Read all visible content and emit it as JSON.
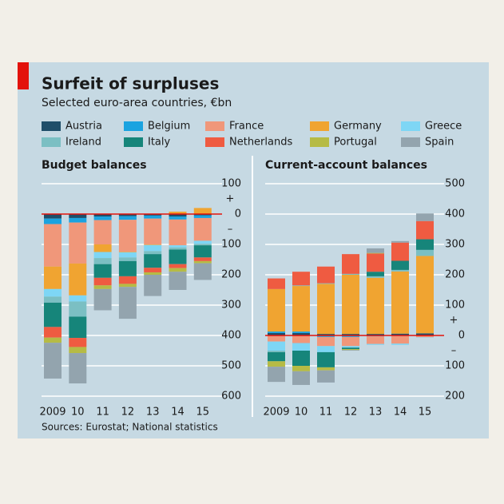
{
  "title": "Surfeit of surpluses",
  "subtitle": "Selected euro-area countries, €bn",
  "source": "Sources: Eurostat; National statistics",
  "chart_data": [
    {
      "type": "bar",
      "stacked": true,
      "title": "Budget balances",
      "categories": [
        "2009",
        "10",
        "11",
        "12",
        "13",
        "14",
        "15"
      ],
      "plus_label": "+",
      "minus_label": "–",
      "ylim": [
        -600,
        100
      ],
      "yticks": [
        100,
        0,
        {
          "value": -100,
          "label": "100"
        },
        {
          "value": -200,
          "label": "200"
        },
        {
          "value": -300,
          "label": "300"
        },
        {
          "value": -400,
          "label": "400"
        },
        {
          "value": -500,
          "label": "500"
        },
        {
          "value": -600,
          "label": "600"
        }
      ],
      "grid": true,
      "series": [
        {
          "name": "Austria",
          "color": "#1f4e69",
          "values": [
            -15,
            -13,
            -8,
            -7,
            -5,
            -8,
            -4
          ]
        },
        {
          "name": "Belgium",
          "color": "#1aa3e0",
          "values": [
            -18,
            -15,
            -12,
            -12,
            -10,
            -10,
            -9
          ]
        },
        {
          "name": "France",
          "color": "#f0977a",
          "values": [
            -140,
            -135,
            -80,
            -105,
            -85,
            -85,
            -75
          ]
        },
        {
          "name": "Germany",
          "color": "#f0a431",
          "values": [
            -74,
            -105,
            -25,
            -2,
            -2,
            8,
            20
          ]
        },
        {
          "name": "Greece",
          "color": "#7ed6f5",
          "values": [
            -25,
            -20,
            -20,
            -17,
            -20,
            -7,
            -10
          ]
        },
        {
          "name": "Ireland",
          "color": "#7bbfc3",
          "values": [
            -20,
            -50,
            -20,
            -12,
            -10,
            -7,
            -5
          ]
        },
        {
          "name": "Italy",
          "color": "#16857a",
          "values": [
            -80,
            -70,
            -45,
            -50,
            -45,
            -48,
            -40
          ]
        },
        {
          "name": "Netherlands",
          "color": "#ef5b41",
          "values": [
            -35,
            -30,
            -25,
            -25,
            -15,
            -13,
            -12
          ]
        },
        {
          "name": "Portugal",
          "color": "#b6bb45",
          "values": [
            -17,
            -20,
            -12,
            -10,
            -8,
            -12,
            -7
          ]
        },
        {
          "name": "Spain",
          "color": "#93a4ae",
          "values": [
            -118,
            -100,
            -70,
            -105,
            -70,
            -60,
            -55
          ]
        }
      ]
    },
    {
      "type": "bar",
      "stacked": true,
      "title": "Current-account balances",
      "categories": [
        "2009",
        "10",
        "11",
        "12",
        "13",
        "14",
        "15"
      ],
      "plus_label": "+",
      "minus_label": "–",
      "ylim": [
        -200,
        500
      ],
      "yticks": [
        500,
        400,
        300,
        200,
        100,
        0,
        {
          "value": -100,
          "label": "100"
        },
        {
          "value": -200,
          "label": "200"
        }
      ],
      "grid": true,
      "series": [
        {
          "name": "Austria",
          "color": "#1f4e69",
          "values": [
            8,
            8,
            5,
            5,
            5,
            6,
            7
          ]
        },
        {
          "name": "Belgium",
          "color": "#1aa3e0",
          "values": [
            5,
            5,
            -5,
            -5,
            -3,
            -2,
            -1
          ]
        },
        {
          "name": "France",
          "color": "#f0977a",
          "values": [
            -20,
            -25,
            -30,
            -30,
            -25,
            -25,
            -5
          ]
        },
        {
          "name": "Germany",
          "color": "#f0a431",
          "values": [
            140,
            150,
            165,
            195,
            185,
            205,
            255
          ]
        },
        {
          "name": "Greece",
          "color": "#7ed6f5",
          "values": [
            -30,
            -25,
            -20,
            -5,
            -3,
            -4,
            -1
          ]
        },
        {
          "name": "Ireland",
          "color": "#7bbfc3",
          "values": [
            -5,
            2,
            2,
            3,
            5,
            5,
            20
          ]
        },
        {
          "name": "Italy",
          "color": "#16857a",
          "values": [
            -30,
            -50,
            -50,
            -5,
            15,
            30,
            35
          ]
        },
        {
          "name": "Netherlands",
          "color": "#ef5b41",
          "values": [
            35,
            45,
            55,
            65,
            60,
            60,
            60
          ]
        },
        {
          "name": "Portugal",
          "color": "#b6bb45",
          "values": [
            -18,
            -18,
            -10,
            -3,
            2,
            0,
            0
          ]
        },
        {
          "name": "Spain",
          "color": "#93a4ae",
          "values": [
            -50,
            -45,
            -40,
            -2,
            15,
            5,
            25
          ]
        }
      ]
    }
  ]
}
